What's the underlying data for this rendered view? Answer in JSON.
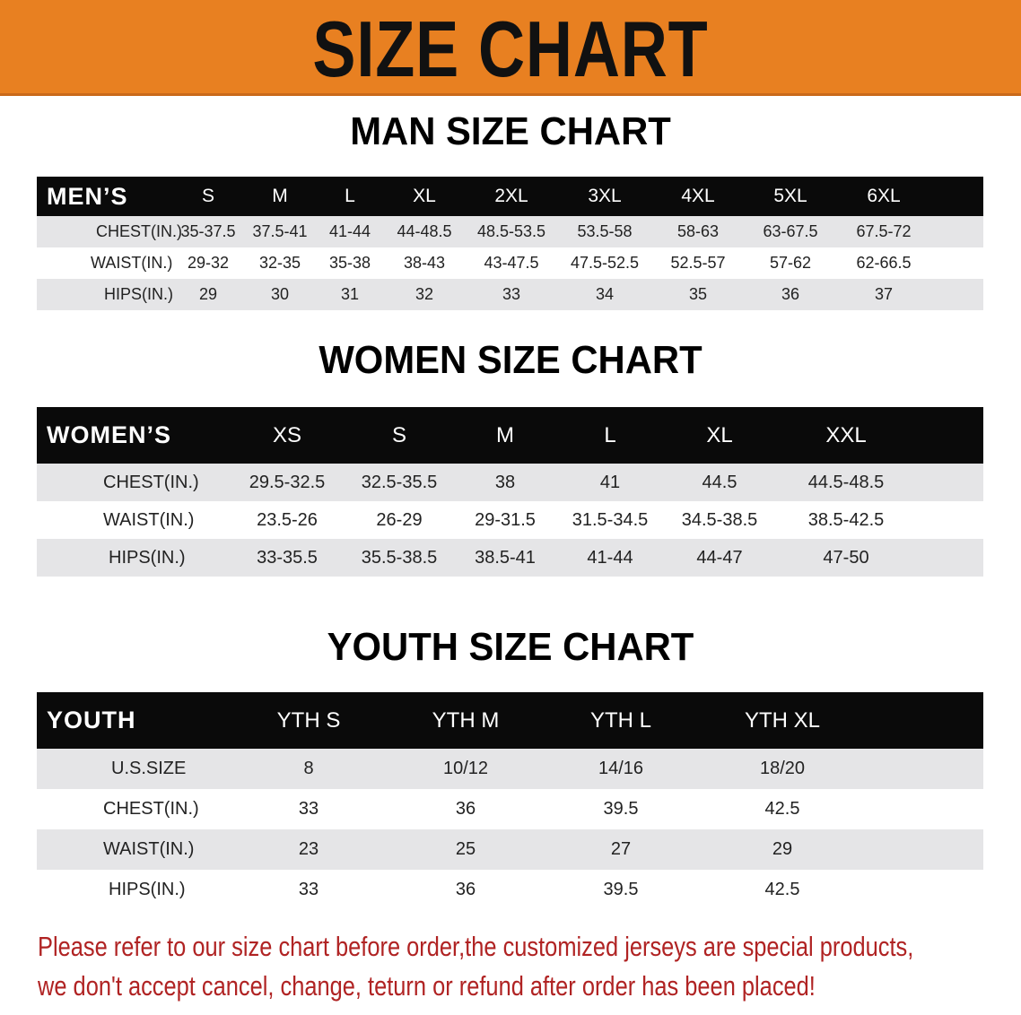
{
  "banner": {
    "title": "SIZE CHART",
    "color": "#e88021"
  },
  "men": {
    "title": "MAN SIZE CHART",
    "header_label": "MEN’S",
    "sizes": [
      "S",
      "M",
      "L",
      "XL",
      "2XL",
      "3XL",
      "4XL",
      "5XL",
      "6XL"
    ],
    "rows": [
      {
        "label": "CHEST(IN.)",
        "values": [
          "35-37.5",
          "37.5-41",
          "41-44",
          "44-48.5",
          "48.5-53.5",
          "53.5-58",
          "58-63",
          "63-67.5",
          "67.5-72"
        ]
      },
      {
        "label": "WAIST(IN.)",
        "values": [
          "29-32",
          "32-35",
          "35-38",
          "38-43",
          "43-47.5",
          "47.5-52.5",
          "52.5-57",
          "57-62",
          "62-66.5"
        ]
      },
      {
        "label": "HIPS(IN.)",
        "values": [
          "29",
          "30",
          "31",
          "32",
          "33",
          "34",
          "35",
          "36",
          "37"
        ]
      }
    ]
  },
  "women": {
    "title": "WOMEN SIZE CHART",
    "header_label": "WOMEN’S",
    "sizes": [
      "XS",
      "S",
      "M",
      "L",
      "XL",
      "XXL"
    ],
    "rows": [
      {
        "label": "CHEST(IN.)",
        "values": [
          "29.5-32.5",
          "32.5-35.5",
          "38",
          "41",
          "44.5",
          "44.5-48.5"
        ]
      },
      {
        "label": "WAIST(IN.)",
        "values": [
          "23.5-26",
          "26-29",
          "29-31.5",
          "31.5-34.5",
          "34.5-38.5",
          "38.5-42.5"
        ]
      },
      {
        "label": "HIPS(IN.)",
        "values": [
          "33-35.5",
          "35.5-38.5",
          "38.5-41",
          "41-44",
          "44-47",
          "47-50"
        ]
      }
    ]
  },
  "youth": {
    "title": "YOUTH SIZE CHART",
    "header_label": "YOUTH",
    "sizes": [
      "YTH S",
      "YTH M",
      "YTH L",
      "YTH XL"
    ],
    "rows": [
      {
        "label": "U.S.SIZE",
        "values": [
          "8",
          "10/12",
          "14/16",
          "18/20"
        ]
      },
      {
        "label": "CHEST(IN.)",
        "values": [
          "33",
          "36",
          "39.5",
          "42.5"
        ]
      },
      {
        "label": "WAIST(IN.)",
        "values": [
          "23",
          "25",
          "27",
          "29"
        ]
      },
      {
        "label": "HIPS(IN.)",
        "values": [
          "33",
          "36",
          "39.5",
          "42.5"
        ]
      }
    ]
  },
  "notice": {
    "line1": "Please refer to our size chart before order,the customized jerseys are special products,",
    "line2": "we don't accept cancel, change, teturn or refund after order has been placed!",
    "color": "#b02323"
  }
}
